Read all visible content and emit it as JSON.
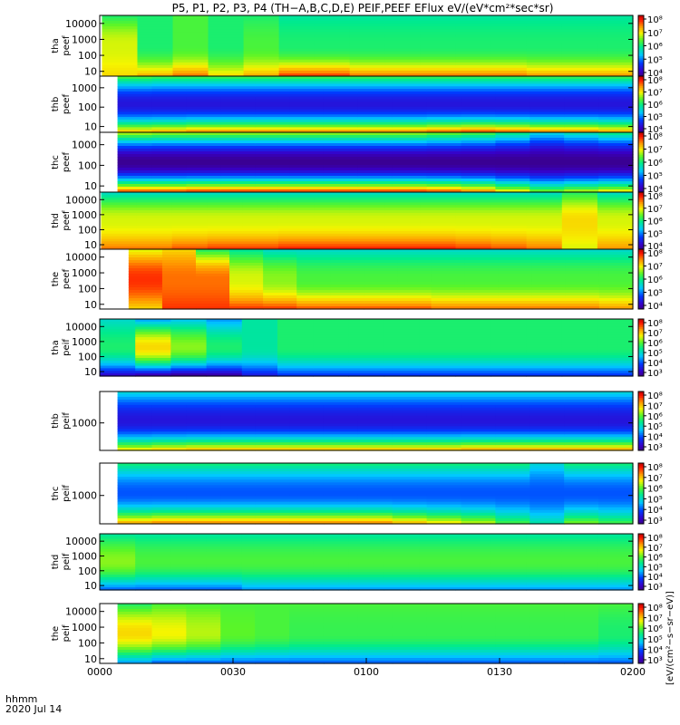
{
  "chart_data": {
    "type": "heatmap",
    "title": "P5, P1, P2, P3, P4 (TH−A,B,C,D,E) PEIF,PEEF EFlux eV/(eV*cm²*sec*sr)",
    "x_axis": {
      "label_line1": "hhmm",
      "label_line2": "2020 Jul 14",
      "range_minutes": [
        0,
        120
      ],
      "ticks": [
        "0000",
        "0030",
        "0100",
        "0130",
        "0200"
      ],
      "tick_minutes": [
        0,
        30,
        60,
        90,
        120
      ]
    },
    "colorbar": {
      "label": "[eV/(cm²−s−sr−eV)]",
      "scale": "log",
      "ticks_electron": [
        "10⁴",
        "10⁵",
        "10⁶",
        "10⁷",
        "10⁸"
      ],
      "ticks_ion": [
        "10³",
        "10⁴",
        "10⁵",
        "10⁶",
        "10⁷",
        "10⁸"
      ]
    },
    "panels": [
      {
        "probe": "tha",
        "species": "peef",
        "y_ticks": [
          "10000",
          "1000",
          "100",
          "10"
        ],
        "y_log_range": [
          0.7,
          4.5
        ],
        "data_start_min": 0.5,
        "intensity": [
          [
            0.55,
            0.7,
            0.75
          ],
          [
            0.55,
            0.55,
            0.8
          ],
          [
            0.6,
            0.6,
            0.85
          ],
          [
            0.55,
            0.55,
            0.75
          ],
          [
            0.55,
            0.6,
            0.8
          ],
          [
            0.5,
            0.55,
            0.9
          ],
          [
            0.5,
            0.55,
            0.9
          ],
          [
            0.5,
            0.55,
            0.85
          ],
          [
            0.5,
            0.55,
            0.85
          ],
          [
            0.5,
            0.55,
            0.85
          ],
          [
            0.5,
            0.55,
            0.85
          ],
          [
            0.5,
            0.55,
            0.85
          ],
          [
            0.5,
            0.55,
            0.82
          ],
          [
            0.5,
            0.55,
            0.82
          ],
          [
            0.5,
            0.55,
            0.82
          ]
        ]
      },
      {
        "probe": "thb",
        "species": "peef",
        "y_ticks": [
          "1000",
          "100",
          "10"
        ],
        "y_log_range": [
          0.7,
          3.6
        ],
        "data_start_min": 4,
        "intensity": [
          [
            0.62,
            0.2,
            0.8
          ],
          [
            0.6,
            0.2,
            0.82
          ],
          [
            0.6,
            0.2,
            0.85
          ],
          [
            0.6,
            0.2,
            0.85
          ],
          [
            0.6,
            0.2,
            0.85
          ],
          [
            0.6,
            0.2,
            0.85
          ],
          [
            0.6,
            0.2,
            0.85
          ],
          [
            0.6,
            0.2,
            0.85
          ],
          [
            0.6,
            0.2,
            0.85
          ],
          [
            0.6,
            0.2,
            0.88
          ],
          [
            0.6,
            0.2,
            0.9
          ],
          [
            0.6,
            0.2,
            0.88
          ],
          [
            0.6,
            0.2,
            0.85
          ],
          [
            0.6,
            0.2,
            0.85
          ],
          [
            0.6,
            0.2,
            0.82
          ]
        ]
      },
      {
        "probe": "thc",
        "species": "peef",
        "y_ticks": [
          "1000",
          "100",
          "10"
        ],
        "y_log_range": [
          0.7,
          3.6
        ],
        "data_start_min": 4,
        "intensity": [
          [
            0.7,
            0.1,
            0.9
          ],
          [
            0.68,
            0.1,
            0.9
          ],
          [
            0.68,
            0.1,
            0.92
          ],
          [
            0.68,
            0.1,
            0.92
          ],
          [
            0.68,
            0.1,
            0.92
          ],
          [
            0.68,
            0.1,
            0.92
          ],
          [
            0.68,
            0.1,
            0.92
          ],
          [
            0.68,
            0.1,
            0.92
          ],
          [
            0.68,
            0.1,
            0.92
          ],
          [
            0.65,
            0.1,
            0.9
          ],
          [
            0.62,
            0.1,
            0.85
          ],
          [
            0.55,
            0.1,
            0.75
          ],
          [
            0.45,
            0.1,
            0.65
          ],
          [
            0.5,
            0.1,
            0.7
          ],
          [
            0.55,
            0.1,
            0.75
          ]
        ]
      },
      {
        "probe": "thd",
        "species": "peef",
        "y_ticks": [
          "10000",
          "1000",
          "100",
          "10"
        ],
        "y_log_range": [
          0.7,
          4.5
        ],
        "data_start_min": 0.3,
        "intensity": [
          [
            0.45,
            0.7,
            0.85
          ],
          [
            0.45,
            0.7,
            0.85
          ],
          [
            0.45,
            0.7,
            0.88
          ],
          [
            0.45,
            0.7,
            0.9
          ],
          [
            0.45,
            0.7,
            0.9
          ],
          [
            0.45,
            0.7,
            0.92
          ],
          [
            0.45,
            0.7,
            0.92
          ],
          [
            0.45,
            0.7,
            0.92
          ],
          [
            0.45,
            0.7,
            0.92
          ],
          [
            0.45,
            0.7,
            0.92
          ],
          [
            0.45,
            0.7,
            0.9
          ],
          [
            0.45,
            0.7,
            0.88
          ],
          [
            0.45,
            0.7,
            0.85
          ],
          [
            0.55,
            0.75,
            0.7
          ],
          [
            0.45,
            0.7,
            0.82
          ]
        ]
      },
      {
        "probe": "the",
        "species": "peef",
        "y_ticks": [
          "10000",
          "1000",
          "100",
          "10"
        ],
        "y_log_range": [
          0.7,
          4.5
        ],
        "data_start_min": 6.5,
        "intensity": [
          [
            0.7,
            0.9,
            0.75
          ],
          [
            0.75,
            0.85,
            0.9
          ],
          [
            0.55,
            0.85,
            0.9
          ],
          [
            0.5,
            0.7,
            0.9
          ],
          [
            0.45,
            0.65,
            0.9
          ],
          [
            0.45,
            0.6,
            0.88
          ],
          [
            0.45,
            0.6,
            0.88
          ],
          [
            0.45,
            0.6,
            0.88
          ],
          [
            0.45,
            0.6,
            0.88
          ],
          [
            0.45,
            0.6,
            0.85
          ],
          [
            0.45,
            0.6,
            0.85
          ],
          [
            0.45,
            0.6,
            0.85
          ],
          [
            0.45,
            0.6,
            0.85
          ],
          [
            0.45,
            0.6,
            0.85
          ],
          [
            0.45,
            0.6,
            0.82
          ]
        ]
      },
      {
        "probe": "tha",
        "species": "peif",
        "y_ticks": [
          "10000",
          "1000",
          "100",
          "10"
        ],
        "y_log_range": [
          0.7,
          4.5
        ],
        "data_start_min": 0,
        "intensity": [
          [
            0.45,
            0.55,
            0.15
          ],
          [
            0.35,
            0.75,
            0.1
          ],
          [
            0.4,
            0.65,
            0.08
          ],
          [
            0.35,
            0.55,
            0.1
          ],
          [
            0.5,
            0.5,
            0.2
          ],
          [
            0.55,
            0.55,
            0.25
          ],
          [
            0.55,
            0.55,
            0.25
          ],
          [
            0.55,
            0.55,
            0.25
          ],
          [
            0.55,
            0.55,
            0.25
          ],
          [
            0.55,
            0.55,
            0.25
          ],
          [
            0.55,
            0.55,
            0.25
          ],
          [
            0.55,
            0.55,
            0.25
          ],
          [
            0.55,
            0.55,
            0.25
          ],
          [
            0.55,
            0.55,
            0.25
          ],
          [
            0.55,
            0.55,
            0.25
          ]
        ]
      },
      {
        "probe": "thb",
        "species": "peif",
        "y_ticks": [
          "1000"
        ],
        "y_log_range": [
          2.3,
          3.8
        ],
        "data_start_min": 4,
        "intensity": [
          [
            0.45,
            0.2,
            0.75
          ],
          [
            0.45,
            0.2,
            0.78
          ],
          [
            0.45,
            0.2,
            0.8
          ],
          [
            0.45,
            0.2,
            0.8
          ],
          [
            0.45,
            0.2,
            0.8
          ],
          [
            0.45,
            0.2,
            0.8
          ],
          [
            0.45,
            0.2,
            0.8
          ],
          [
            0.45,
            0.2,
            0.8
          ],
          [
            0.45,
            0.2,
            0.8
          ],
          [
            0.45,
            0.2,
            0.8
          ],
          [
            0.45,
            0.2,
            0.82
          ],
          [
            0.45,
            0.2,
            0.82
          ],
          [
            0.45,
            0.2,
            0.82
          ],
          [
            0.45,
            0.2,
            0.82
          ],
          [
            0.45,
            0.2,
            0.82
          ]
        ]
      },
      {
        "probe": "thc",
        "species": "peif",
        "y_ticks": [
          "1000"
        ],
        "y_log_range": [
          2.3,
          3.8
        ],
        "data_start_min": 4,
        "intensity": [
          [
            0.55,
            0.3,
            0.82
          ],
          [
            0.55,
            0.3,
            0.85
          ],
          [
            0.55,
            0.3,
            0.85
          ],
          [
            0.55,
            0.3,
            0.85
          ],
          [
            0.55,
            0.3,
            0.85
          ],
          [
            0.55,
            0.3,
            0.85
          ],
          [
            0.55,
            0.3,
            0.85
          ],
          [
            0.55,
            0.3,
            0.85
          ],
          [
            0.55,
            0.3,
            0.8
          ],
          [
            0.55,
            0.3,
            0.75
          ],
          [
            0.55,
            0.3,
            0.7
          ],
          [
            0.55,
            0.3,
            0.6
          ],
          [
            0.45,
            0.3,
            0.5
          ],
          [
            0.55,
            0.3,
            0.65
          ],
          [
            0.55,
            0.3,
            0.6
          ]
        ]
      },
      {
        "probe": "thd",
        "species": "peif",
        "y_ticks": [
          "10000",
          "1000",
          "100",
          "10"
        ],
        "y_log_range": [
          0.7,
          4.5
        ],
        "data_start_min": 0,
        "intensity": [
          [
            0.5,
            0.65,
            0.3
          ],
          [
            0.5,
            0.6,
            0.3
          ],
          [
            0.5,
            0.6,
            0.3
          ],
          [
            0.5,
            0.6,
            0.3
          ],
          [
            0.5,
            0.6,
            0.35
          ],
          [
            0.5,
            0.6,
            0.35
          ],
          [
            0.5,
            0.6,
            0.35
          ],
          [
            0.5,
            0.6,
            0.35
          ],
          [
            0.5,
            0.6,
            0.35
          ],
          [
            0.5,
            0.6,
            0.35
          ],
          [
            0.5,
            0.6,
            0.35
          ],
          [
            0.5,
            0.6,
            0.35
          ],
          [
            0.5,
            0.6,
            0.35
          ],
          [
            0.5,
            0.6,
            0.35
          ],
          [
            0.5,
            0.6,
            0.35
          ]
        ]
      },
      {
        "probe": "the",
        "species": "peif",
        "y_ticks": [
          "10000",
          "1000",
          "100",
          "10"
        ],
        "y_log_range": [
          0.7,
          4.5
        ],
        "data_start_min": 4,
        "intensity": [
          [
            0.55,
            0.75,
            0.35
          ],
          [
            0.6,
            0.72,
            0.3
          ],
          [
            0.6,
            0.68,
            0.3
          ],
          [
            0.6,
            0.62,
            0.3
          ],
          [
            0.6,
            0.6,
            0.3
          ],
          [
            0.6,
            0.58,
            0.3
          ],
          [
            0.6,
            0.58,
            0.3
          ],
          [
            0.6,
            0.58,
            0.3
          ],
          [
            0.6,
            0.58,
            0.3
          ],
          [
            0.6,
            0.58,
            0.3
          ],
          [
            0.6,
            0.58,
            0.3
          ],
          [
            0.6,
            0.58,
            0.3
          ],
          [
            0.6,
            0.58,
            0.3
          ],
          [
            0.6,
            0.58,
            0.3
          ],
          [
            0.6,
            0.55,
            0.3
          ]
        ]
      }
    ]
  }
}
